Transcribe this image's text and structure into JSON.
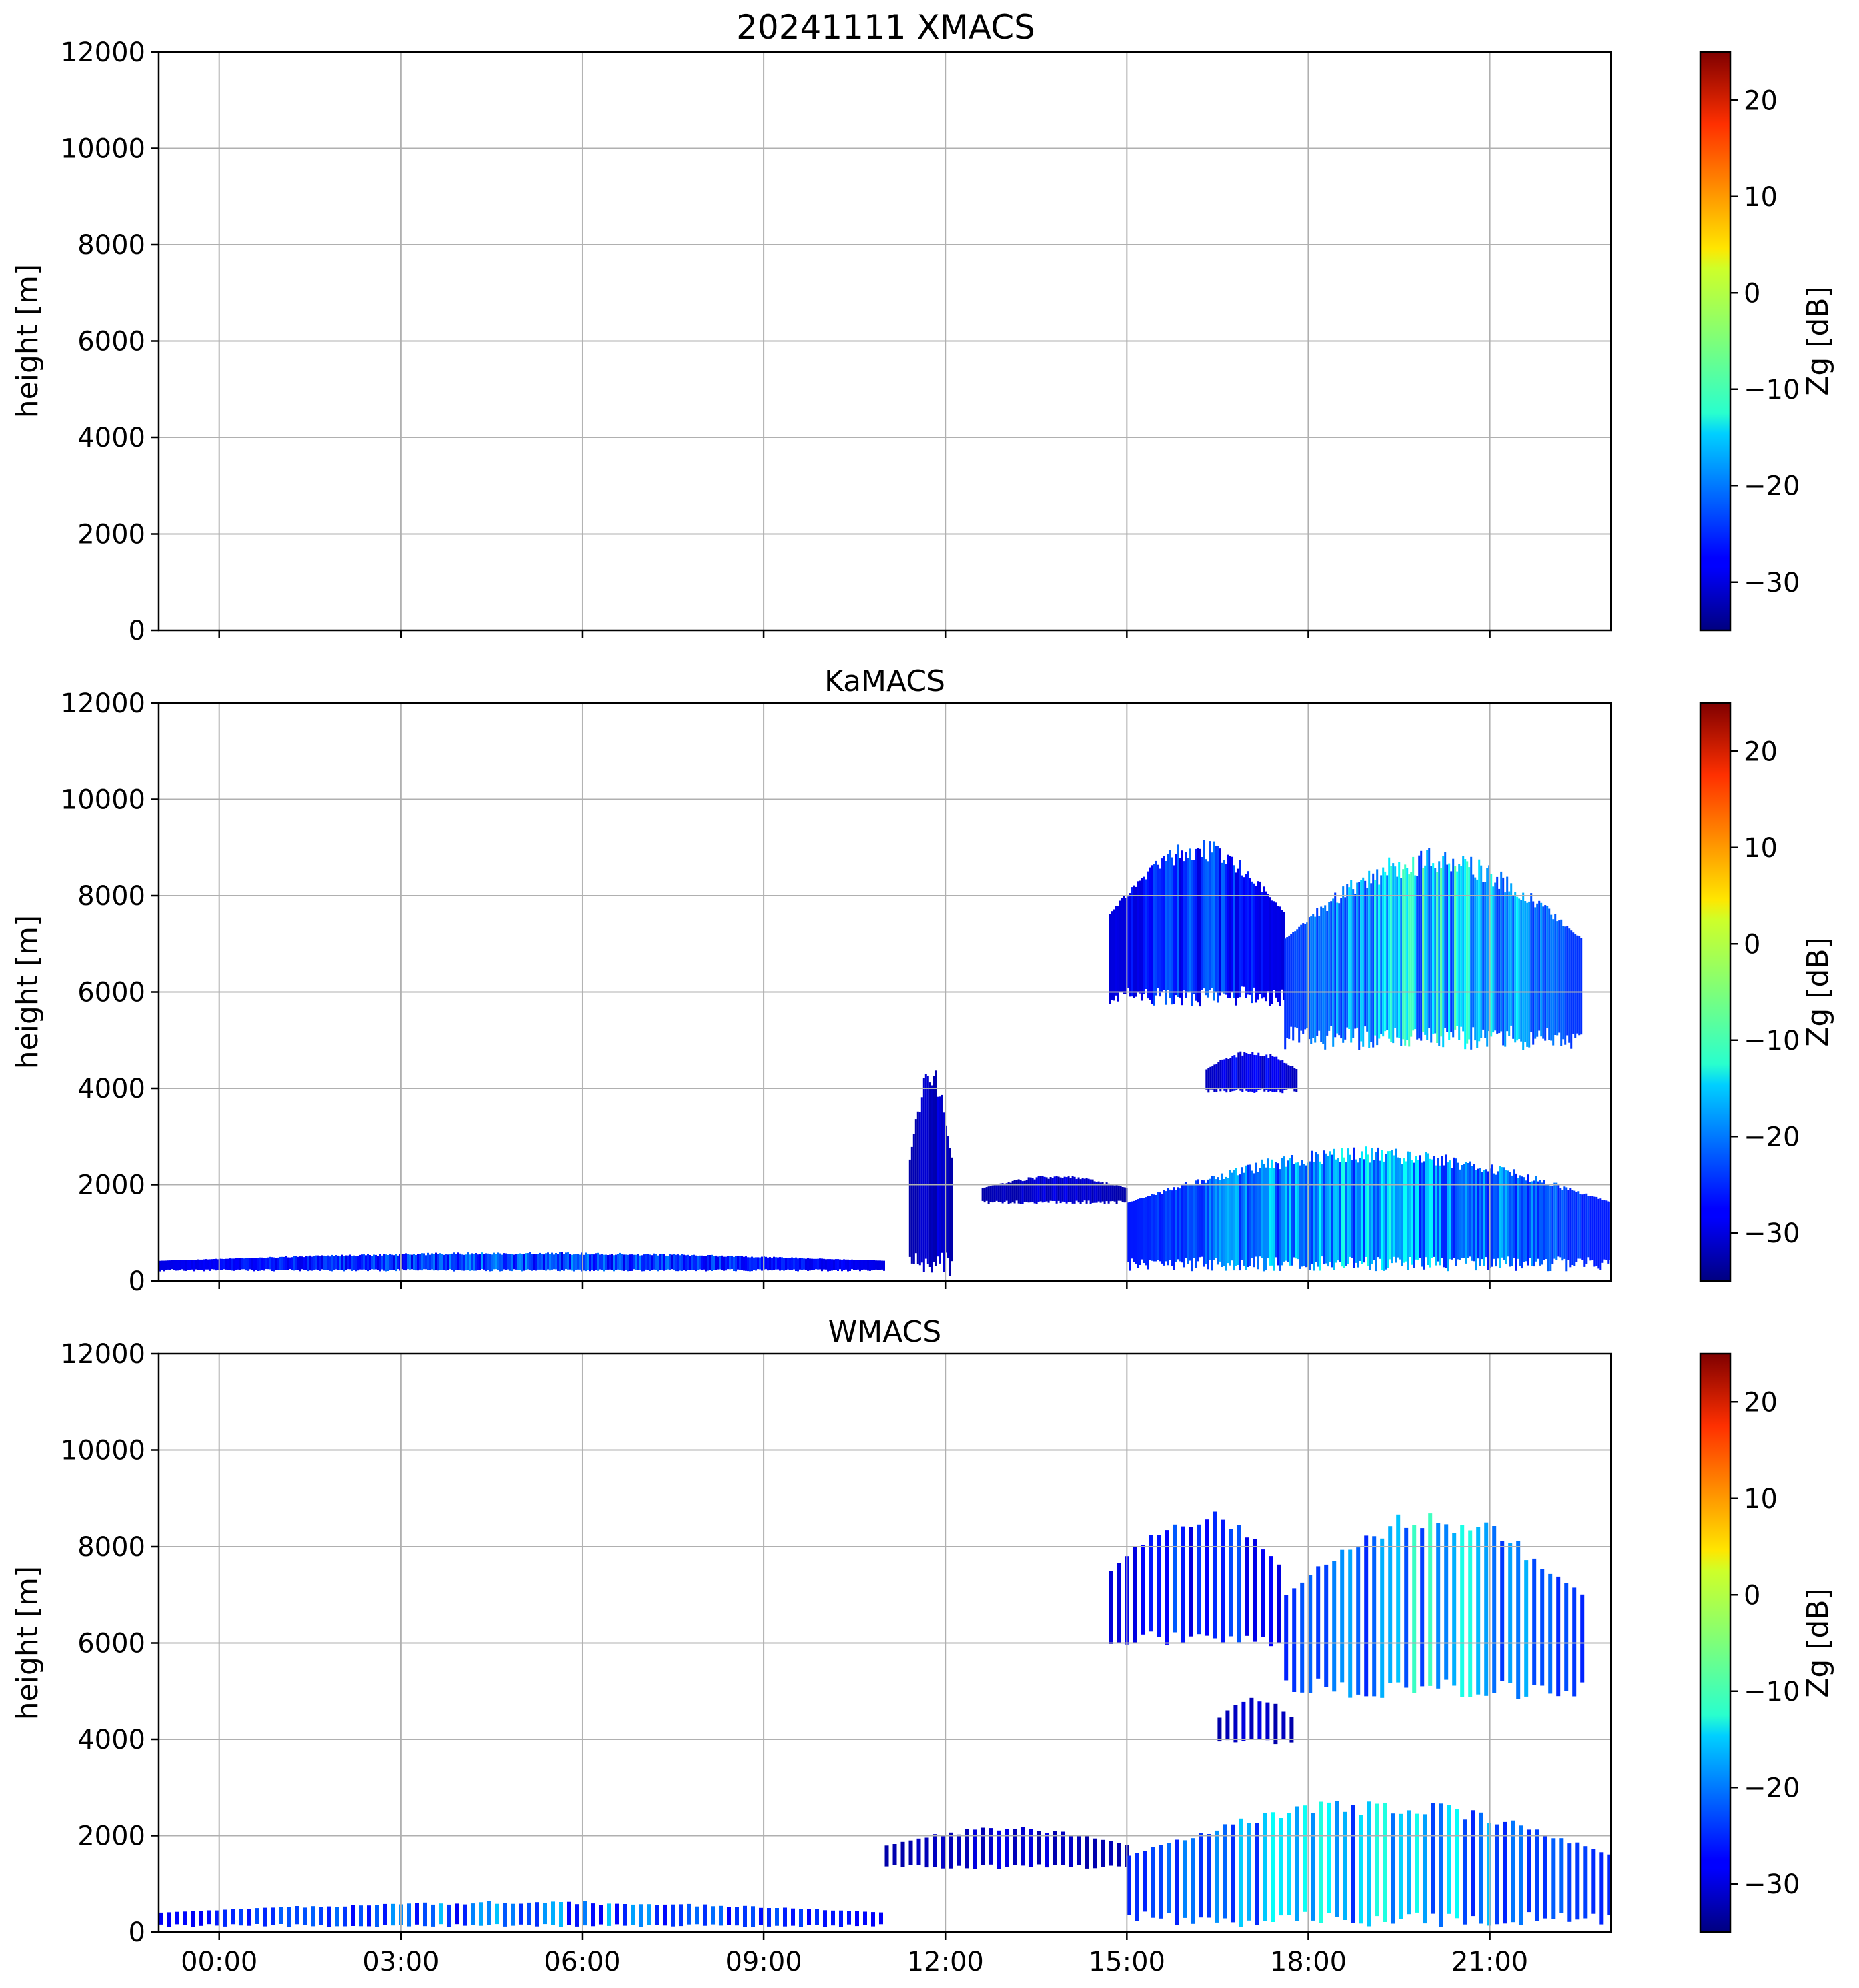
{
  "figure_title": "20241111 XMACS",
  "colorscale": {
    "name": "jet",
    "label": "Zg [dB]",
    "vmin": -35,
    "vmax": 25,
    "ticks": [
      20,
      10,
      0,
      -10,
      -20,
      -30
    ],
    "tick_labels": [
      "20",
      "10",
      "0",
      "−10",
      "−20",
      "−30"
    ]
  },
  "chart_data": [
    {
      "type": "heatmap",
      "title": "",
      "xlabel": "",
      "ylabel": "height [m]",
      "xlim_hours": [
        -1.0,
        23.0
      ],
      "ylim": [
        0,
        12000
      ],
      "grid": true,
      "y_ticks": [
        0,
        2000,
        4000,
        6000,
        8000,
        10000,
        12000
      ],
      "x_ticks_hours": [
        0,
        3,
        6,
        9,
        12,
        15,
        18,
        21
      ],
      "x_tick_labels": [],
      "cloud_regions": []
    },
    {
      "type": "heatmap",
      "title": "KaMACS",
      "xlabel": "",
      "ylabel": "height [m]",
      "xlim_hours": [
        -1.0,
        23.0
      ],
      "ylim": [
        0,
        12000
      ],
      "grid": true,
      "y_ticks": [
        0,
        2000,
        4000,
        6000,
        8000,
        10000,
        12000
      ],
      "x_ticks_hours": [
        0,
        3,
        6,
        9,
        12,
        15,
        18,
        21
      ],
      "x_tick_labels": [],
      "cloud_regions": [
        {
          "hour_start": -1.0,
          "hour_end": 11.0,
          "base_m": 200,
          "top_m": 600,
          "peak_dbz": -18
        },
        {
          "hour_start": 11.4,
          "hour_end": 12.1,
          "base_m": 100,
          "top_m": 4500,
          "peak_dbz": -28
        },
        {
          "hour_start": 12.6,
          "hour_end": 15.0,
          "base_m": 1600,
          "top_m": 2200,
          "peak_dbz": -28
        },
        {
          "hour_start": 15.0,
          "hour_end": 23.0,
          "base_m": 200,
          "top_m": 2800,
          "peak_dbz": -10
        },
        {
          "hour_start": 14.7,
          "hour_end": 17.6,
          "base_m": 5700,
          "top_m": 9200,
          "peak_dbz": -20
        },
        {
          "hour_start": 17.6,
          "hour_end": 22.5,
          "base_m": 4800,
          "top_m": 9000,
          "peak_dbz": -6
        },
        {
          "hour_start": 16.3,
          "hour_end": 17.8,
          "base_m": 3900,
          "top_m": 4800,
          "peak_dbz": -25
        }
      ]
    },
    {
      "type": "heatmap",
      "title": "WMACS",
      "xlabel": "",
      "ylabel": "height [m]",
      "xlim_hours": [
        -1.0,
        23.0
      ],
      "ylim": [
        0,
        12000
      ],
      "grid": true,
      "y_ticks": [
        0,
        2000,
        4000,
        6000,
        8000,
        10000,
        12000
      ],
      "x_ticks_hours": [
        0,
        3,
        6,
        9,
        12,
        15,
        18,
        21
      ],
      "x_tick_labels": [
        "00:00",
        "03:00",
        "06:00",
        "09:00",
        "12:00",
        "15:00",
        "18:00",
        "21:00"
      ],
      "cloud_regions": [
        {
          "hour_start": -1.0,
          "hour_end": 11.0,
          "base_m": 100,
          "top_m": 650,
          "peak_dbz": -15
        },
        {
          "hour_start": 11.0,
          "hour_end": 15.0,
          "base_m": 1300,
          "top_m": 2200,
          "peak_dbz": -28
        },
        {
          "hour_start": 15.0,
          "hour_end": 23.0,
          "base_m": 100,
          "top_m": 2800,
          "peak_dbz": -8
        },
        {
          "hour_start": 14.7,
          "hour_end": 17.6,
          "base_m": 5900,
          "top_m": 8800,
          "peak_dbz": -20
        },
        {
          "hour_start": 17.6,
          "hour_end": 22.5,
          "base_m": 4800,
          "top_m": 8800,
          "peak_dbz": -8
        },
        {
          "hour_start": 16.5,
          "hour_end": 17.7,
          "base_m": 3900,
          "top_m": 4900,
          "peak_dbz": -28
        }
      ]
    }
  ]
}
